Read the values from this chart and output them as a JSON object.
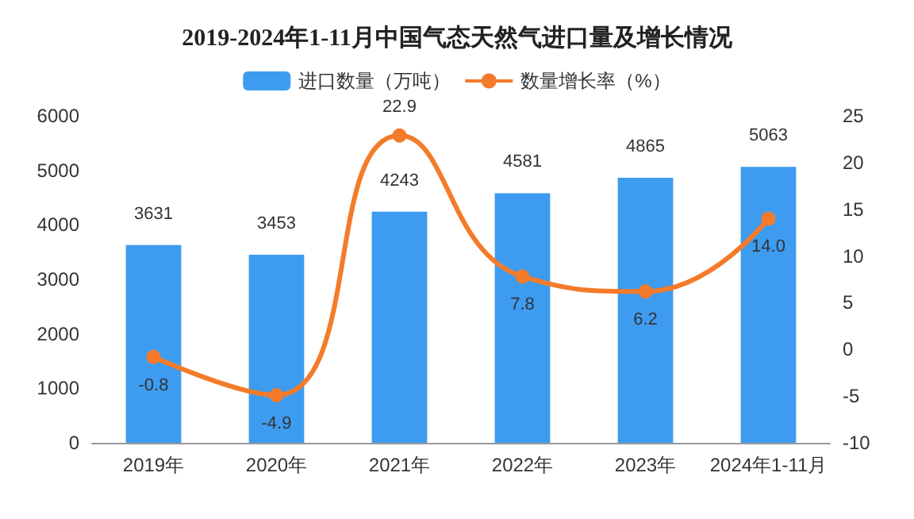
{
  "chart_data": {
    "type": "bar",
    "title": "2019-2024年1-11月中国气态天然气进口量及增长情况",
    "categories": [
      "2019年",
      "2020年",
      "2021年",
      "2022年",
      "2023年",
      "2024年1-11月"
    ],
    "series": [
      {
        "name": "进口数量（万吨）",
        "color": "#3d9cf0",
        "values": [
          3631,
          3453,
          4243,
          4581,
          4865,
          5063
        ]
      },
      {
        "name": "数量增长率（%）",
        "type": "line",
        "axis": "y2",
        "color": "#f47b2a",
        "values": [
          -0.8,
          -4.9,
          22.9,
          7.8,
          6.2,
          14.0
        ],
        "value_labels": [
          "-0.8",
          "-4.9",
          "22.9",
          "7.8",
          "6.2",
          "14.0"
        ]
      }
    ],
    "ylim": [
      0,
      6000
    ],
    "yticks": [
      0,
      1000,
      2000,
      3000,
      4000,
      5000,
      6000
    ],
    "y2lim": [
      -10,
      25
    ],
    "y2ticks": [
      -10,
      -5,
      0,
      5,
      10,
      15,
      20,
      25
    ],
    "data_labels": true,
    "legend": "top",
    "grid": false,
    "marker": "circle"
  }
}
